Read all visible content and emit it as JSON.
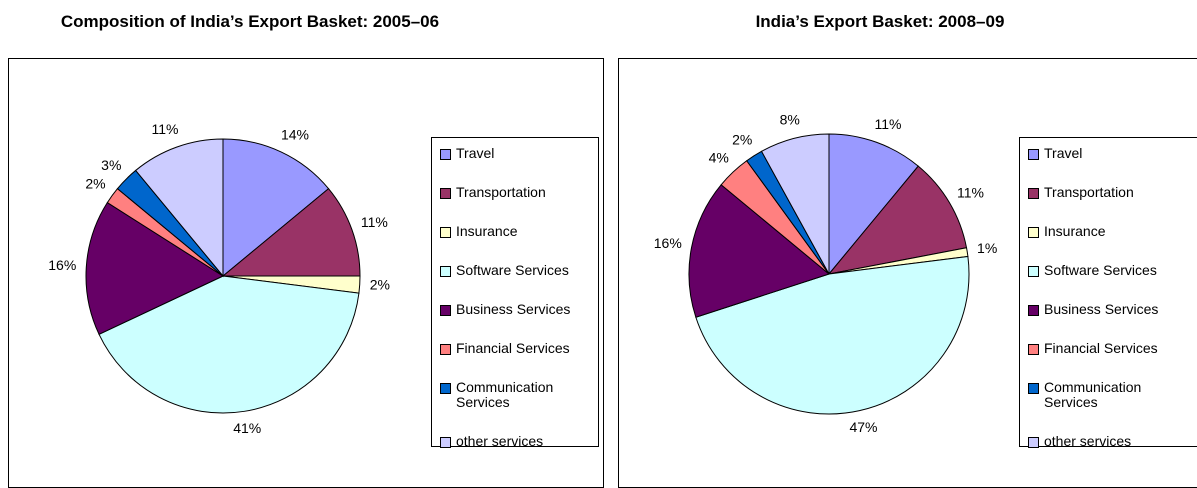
{
  "chart_data": [
    {
      "type": "pie",
      "title": "Composition of India’s Export Basket: 2005–06",
      "categories": [
        "Travel",
        "Transportation",
        "Insurance",
        "Software Services",
        "Business Services",
        "Financial Services",
        "Communication Services",
        "other services"
      ],
      "values": [
        14,
        11,
        2,
        41,
        16,
        2,
        3,
        11
      ],
      "value_labels": [
        "14%",
        "11%",
        "2%",
        "41%",
        "16%",
        "2%",
        "3%",
        "11%"
      ],
      "colors": [
        "#9999ff",
        "#993366",
        "#ffffcc",
        "#ccffff",
        "#660066",
        "#ff8080",
        "#0066cc",
        "#ccccff"
      ]
    },
    {
      "type": "pie",
      "title": "India’s Export Basket: 2008–09",
      "categories": [
        "Travel",
        "Transportation",
        "Insurance",
        "Software Services",
        "Business Services",
        "Financial Services",
        "Communication Services",
        "other services"
      ],
      "values": [
        11,
        11,
        1,
        47,
        16,
        4,
        2,
        8
      ],
      "value_labels": [
        "11%",
        "11%",
        "1%",
        "47%",
        "16%",
        "4%",
        "2%",
        "8%"
      ],
      "colors": [
        "#9999ff",
        "#993366",
        "#ffffcc",
        "#ccffff",
        "#660066",
        "#ff8080",
        "#0066cc",
        "#ccccff"
      ]
    }
  ]
}
